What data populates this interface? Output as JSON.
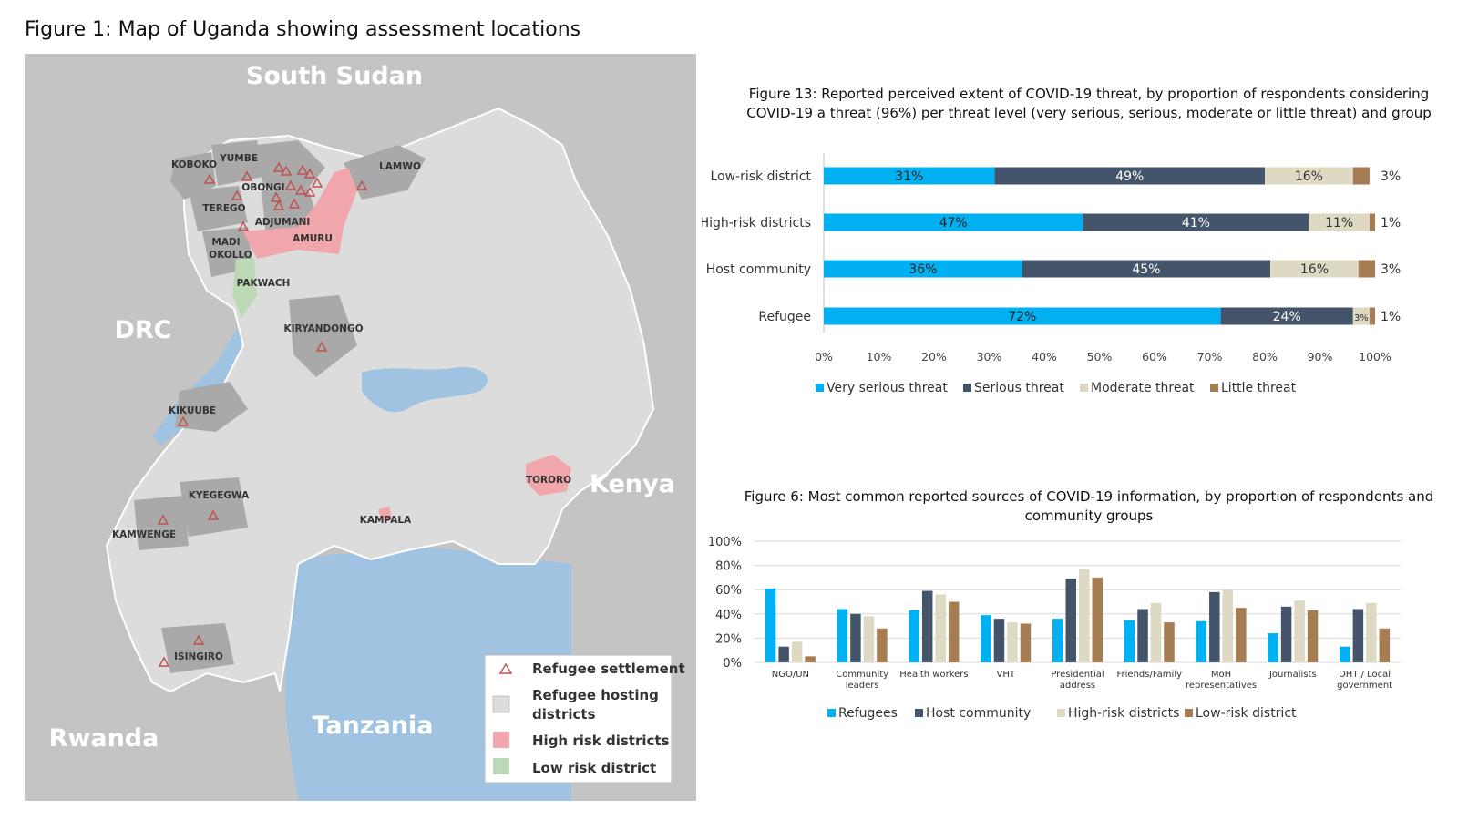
{
  "figure1": {
    "title": "Figure 1: Map of Uganda showing assessment locations",
    "countries": {
      "north": "South Sudan",
      "west": "DRC",
      "east": "Kenya",
      "south": "Tanzania",
      "southwest": "Rwanda"
    },
    "districts": {
      "koboko": "KOBOKO",
      "yumbe": "YUMBE",
      "obongi": "OBONGI",
      "lamwo": "LAMWO",
      "terego": "TEREGO",
      "adjumani": "ADJUMANI",
      "amuru": "AMURU",
      "madi_okollo_1": "MADI",
      "madi_okollo_2": "OKOLLO",
      "pakwach": "PAKWACH",
      "kiryandongo": "KIRYANDONGO",
      "kikuube": "KIKUUBE",
      "kyegegwa": "KYEGEGWA",
      "kamwenge": "KAMWENGE",
      "kampala": "KAMPALA",
      "tororo": "TORORO",
      "isingiro": "ISINGIRO"
    },
    "legend": {
      "settlement": "Refugee settlement",
      "hosting_1": "Refugee hosting",
      "hosting_2": "districts",
      "high_risk": "High risk districts",
      "low_risk": "Low risk district"
    },
    "colors": {
      "land": "#dcdcdc",
      "neighbor": "#c4c4c4",
      "hosting": "#a9a9a9",
      "high_risk": "#f0a6aa",
      "low_risk": "#bcd9b6",
      "water": "#9fc3e0",
      "settlement_marker": "#c0504d"
    }
  },
  "chart_data": [
    {
      "type": "bar",
      "orientation": "horizontal",
      "stacked": true,
      "title": "Figure 13: Reported perceived extent of COVID-19 threat, by proportion of respondents considering COVID-19 a threat (96%) per threat level (very serious, serious, moderate or little threat) and group",
      "title_lines": [
        "Figure 13: Reported perceived extent of COVID-19 threat, by proportion of respondents considering",
        "COVID-19 a threat (96%) per threat level (very serious, serious, moderate or little threat) and group"
      ],
      "categories": [
        "Low-risk district",
        "High-risk districts",
        "Host community",
        "Refugee"
      ],
      "series": [
        {
          "name": "Very serious threat",
          "color": "#00b0f0",
          "values": [
            31,
            47,
            36,
            72
          ]
        },
        {
          "name": "Serious threat",
          "color": "#44546a",
          "values": [
            49,
            41,
            45,
            24
          ]
        },
        {
          "name": "Moderate threat",
          "color": "#ddd9c3",
          "values": [
            16,
            11,
            16,
            3
          ]
        },
        {
          "name": "Little threat",
          "color": "#a67c52",
          "values": [
            3,
            1,
            3,
            1
          ]
        }
      ],
      "xlim": [
        0,
        100
      ],
      "x_ticks": [
        "0%",
        "10%",
        "20%",
        "30%",
        "40%",
        "50%",
        "60%",
        "70%",
        "80%",
        "90%",
        "100%"
      ],
      "legend_position": "bottom"
    },
    {
      "type": "bar",
      "orientation": "vertical",
      "title": "Figure 6: Most common reported sources of COVID-19 information, by proportion of respondents and community groups",
      "title_lines": [
        "Figure 6: Most common reported sources of COVID-19 information, by proportion of respondents and",
        "community groups"
      ],
      "categories": [
        [
          "NGO/UN"
        ],
        [
          "Community",
          "leaders"
        ],
        [
          "Health workers"
        ],
        [
          "VHT"
        ],
        [
          "Presidential",
          "address"
        ],
        [
          "Friends/Family"
        ],
        [
          "MoH",
          "representatives"
        ],
        [
          "Journalists"
        ],
        [
          "DHT / Local",
          "government"
        ]
      ],
      "series": [
        {
          "name": "Refugees",
          "color": "#00b0f0",
          "values": [
            61,
            44,
            43,
            39,
            36,
            35,
            34,
            24,
            13
          ]
        },
        {
          "name": "Host community",
          "color": "#44546a",
          "values": [
            13,
            40,
            59,
            36,
            69,
            44,
            58,
            46,
            44
          ]
        },
        {
          "name": "High-risk districts",
          "color": "#ddd9c3",
          "values": [
            17,
            38,
            56,
            33,
            77,
            49,
            60,
            51,
            49
          ]
        },
        {
          "name": "Low-risk district",
          "color": "#a67c52",
          "values": [
            5,
            28,
            50,
            32,
            70,
            33,
            45,
            43,
            28
          ]
        }
      ],
      "ylim": [
        0,
        100
      ],
      "y_ticks": [
        "0%",
        "20%",
        "40%",
        "60%",
        "80%",
        "100%"
      ],
      "grid": true,
      "legend_position": "bottom"
    }
  ]
}
